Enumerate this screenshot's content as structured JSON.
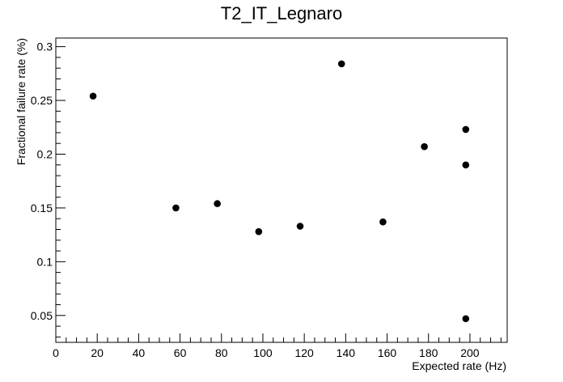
{
  "chart_data": {
    "type": "scatter",
    "title": "T2_IT_Legnaro",
    "xlabel": "Expected rate (Hz)",
    "ylabel": "Fractional failure rate (%)",
    "xlim": [
      0,
      218
    ],
    "ylim": [
      0.025,
      0.308
    ],
    "x_ticks": [
      0,
      20,
      40,
      60,
      80,
      100,
      120,
      140,
      160,
      180,
      200
    ],
    "x_tick_labels": [
      "0",
      "20",
      "40",
      "60",
      "80",
      "100",
      "120",
      "140",
      "160",
      "180",
      "200"
    ],
    "y_ticks": [
      0.05,
      0.1,
      0.15,
      0.2,
      0.25,
      0.3
    ],
    "y_tick_labels": [
      "0.05",
      "0.1",
      "0.15",
      "0.2",
      "0.25",
      "0.3"
    ],
    "grid": false,
    "marker_color": "#000000",
    "points": [
      {
        "x": 18,
        "y": 0.254
      },
      {
        "x": 58,
        "y": 0.15
      },
      {
        "x": 78,
        "y": 0.154
      },
      {
        "x": 98,
        "y": 0.128
      },
      {
        "x": 118,
        "y": 0.133
      },
      {
        "x": 138,
        "y": 0.284
      },
      {
        "x": 158,
        "y": 0.137
      },
      {
        "x": 178,
        "y": 0.207
      },
      {
        "x": 198,
        "y": 0.223
      },
      {
        "x": 198,
        "y": 0.19
      },
      {
        "x": 198,
        "y": 0.047
      }
    ]
  }
}
